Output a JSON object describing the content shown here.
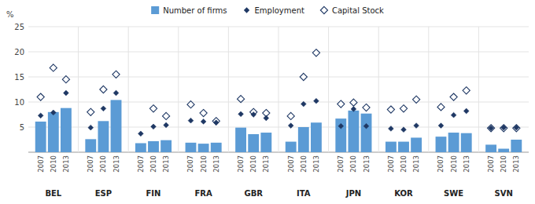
{
  "chart_data": {
    "type": "bar",
    "ylabel": "%",
    "groups": [
      "BEL",
      "ESP",
      "FIN",
      "FRA",
      "GBR",
      "ITA",
      "JPN",
      "KOR",
      "SWE",
      "SVN"
    ],
    "categories": [
      "2007",
      "2010",
      "2013",
      "2007",
      "2010",
      "2013",
      "2007",
      "2010",
      "2013",
      "2007",
      "2010",
      "2013",
      "2007",
      "2010",
      "2013",
      "2007",
      "2010",
      "2013",
      "2007",
      "2010",
      "2013",
      "2007",
      "2010",
      "2013",
      "2007",
      "2010",
      "2013",
      "2007",
      "2010",
      "2013"
    ],
    "series": [
      {
        "name": "Number of firms",
        "type": "bar",
        "color": "#5b9bd5",
        "values": [
          6.1,
          8.0,
          8.8,
          2.6,
          6.2,
          10.4,
          1.8,
          2.2,
          2.4,
          1.9,
          1.7,
          1.9,
          4.9,
          3.6,
          3.9,
          2.1,
          5.0,
          5.9,
          6.7,
          8.3,
          7.7,
          2.1,
          2.1,
          2.9,
          3.1,
          3.9,
          3.8,
          1.5,
          0.7,
          2.5
        ]
      },
      {
        "name": "Employment",
        "type": "scatter",
        "marker": "diamond",
        "color": "#1f3864",
        "values": [
          7.3,
          7.9,
          11.8,
          4.9,
          8.7,
          11.8,
          3.7,
          5.1,
          5.4,
          6.3,
          6.1,
          5.9,
          7.6,
          7.5,
          6.8,
          5.3,
          9.6,
          10.2,
          5.2,
          8.6,
          5.2,
          4.7,
          4.5,
          5.3,
          5.3,
          7.4,
          8.2,
          4.8,
          4.9,
          4.9
        ]
      },
      {
        "name": "Capital Stock",
        "type": "scatter",
        "marker": "diamond-open",
        "color": "#1f3864",
        "values": [
          11.0,
          16.8,
          14.5,
          8.0,
          12.5,
          15.5,
          null,
          8.7,
          7.2,
          9.5,
          7.8,
          6.2,
          10.6,
          8.0,
          7.8,
          7.2,
          15.0,
          19.8,
          9.6,
          9.9,
          8.9,
          8.5,
          8.7,
          10.5,
          9.0,
          11.0,
          12.3,
          4.8,
          4.8,
          4.8
        ]
      }
    ],
    "ylim": [
      0,
      25
    ],
    "yticks": [
      {
        "value": 0,
        "label": null
      },
      5,
      10,
      15,
      20,
      25
    ],
    "grid": true,
    "legend": "top"
  }
}
